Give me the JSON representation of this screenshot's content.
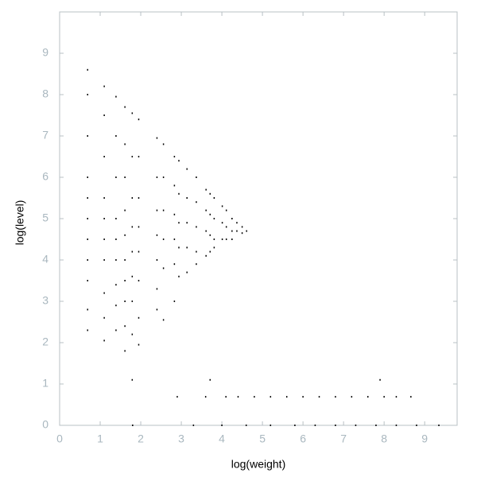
{
  "chart_data": {
    "type": "scatter",
    "x_label": "log(weight)",
    "y_label": "log(level)",
    "xlim": [
      0,
      9.8
    ],
    "ylim": [
      0,
      10
    ],
    "xticks": [
      0,
      1,
      2,
      3,
      4,
      5,
      6,
      7,
      8,
      9
    ],
    "yticks": [
      0,
      1,
      2,
      3,
      4,
      5,
      6,
      7,
      8,
      9
    ],
    "color": "#000000",
    "x": [
      0.69,
      0.69,
      0.69,
      0.69,
      0.69,
      0.69,
      0.69,
      0.69,
      0.69,
      0.69,
      0.69,
      1.1,
      1.1,
      1.1,
      1.1,
      1.1,
      1.1,
      1.1,
      1.1,
      1.1,
      1.1,
      1.39,
      1.39,
      1.39,
      1.39,
      1.39,
      1.39,
      1.39,
      1.39,
      1.39,
      1.61,
      1.61,
      1.61,
      1.61,
      1.61,
      1.61,
      1.61,
      1.61,
      1.61,
      1.61,
      1.79,
      1.79,
      1.79,
      1.79,
      1.79,
      1.79,
      1.79,
      1.79,
      1.79,
      1.95,
      1.95,
      1.95,
      1.95,
      1.95,
      1.95,
      1.95,
      1.95,
      2.4,
      2.4,
      2.4,
      2.4,
      2.4,
      2.4,
      2.4,
      2.56,
      2.56,
      2.56,
      2.56,
      2.56,
      2.56,
      2.83,
      2.83,
      2.83,
      2.83,
      2.83,
      2.83,
      2.94,
      2.94,
      2.94,
      2.94,
      2.94,
      3.14,
      3.14,
      3.14,
      3.14,
      3.14,
      3.37,
      3.37,
      3.37,
      3.37,
      3.37,
      3.61,
      3.61,
      3.61,
      3.61,
      3.71,
      3.71,
      3.71,
      3.71,
      3.71,
      3.81,
      3.81,
      3.81,
      3.81,
      4.01,
      4.01,
      4.01,
      4.11,
      4.11,
      4.11,
      4.25,
      4.25,
      4.25,
      4.37,
      4.37,
      4.5,
      4.5,
      4.61,
      7.9,
      2.9,
      3.6,
      4.1,
      4.4,
      4.8,
      5.2,
      5.6,
      6.0,
      6.4,
      6.8,
      7.2,
      7.6,
      8.0,
      8.3,
      8.66,
      1.8,
      3.3,
      4.0,
      4.6,
      5.2,
      5.8,
      6.3,
      6.8,
      7.3,
      7.8,
      8.3,
      8.8,
      9.35
    ],
    "values": [
      8.6,
      8.0,
      7.0,
      6.0,
      5.5,
      5.0,
      4.5,
      4.0,
      3.5,
      2.8,
      2.3,
      8.2,
      7.5,
      6.5,
      5.5,
      5.0,
      4.5,
      4.0,
      3.2,
      2.6,
      2.05,
      7.95,
      7.0,
      6.0,
      5.0,
      4.5,
      4.0,
      3.4,
      2.9,
      2.3,
      7.7,
      6.8,
      6.0,
      5.2,
      4.6,
      4.0,
      3.5,
      3.0,
      2.4,
      1.8,
      7.55,
      6.5,
      5.5,
      4.8,
      4.2,
      3.6,
      3.0,
      2.2,
      1.1,
      7.4,
      6.5,
      5.5,
      4.8,
      4.2,
      3.5,
      2.6,
      1.95,
      6.95,
      6.0,
      5.2,
      4.6,
      4.0,
      3.3,
      2.8,
      6.8,
      6.0,
      5.2,
      4.5,
      3.8,
      2.55,
      6.5,
      5.8,
      5.1,
      4.5,
      3.9,
      3.0,
      6.4,
      5.6,
      4.9,
      4.3,
      3.6,
      6.2,
      5.5,
      4.9,
      4.3,
      3.7,
      6.0,
      5.4,
      4.8,
      4.2,
      3.9,
      5.7,
      5.2,
      4.7,
      4.1,
      5.6,
      5.1,
      4.6,
      4.2,
      1.1,
      5.5,
      5.0,
      4.5,
      4.3,
      5.3,
      4.9,
      4.5,
      5.2,
      4.8,
      4.5,
      5.0,
      4.7,
      4.5,
      4.9,
      4.7,
      4.8,
      4.65,
      4.7,
      1.1,
      0.69,
      0.69,
      0.69,
      0.69,
      0.69,
      0.69,
      0.69,
      0.69,
      0.69,
      0.69,
      0.69,
      0.69,
      0.69,
      0.69,
      0.69,
      0,
      0,
      0,
      0,
      0,
      0,
      0,
      0,
      0,
      0,
      0,
      0,
      0
    ]
  }
}
